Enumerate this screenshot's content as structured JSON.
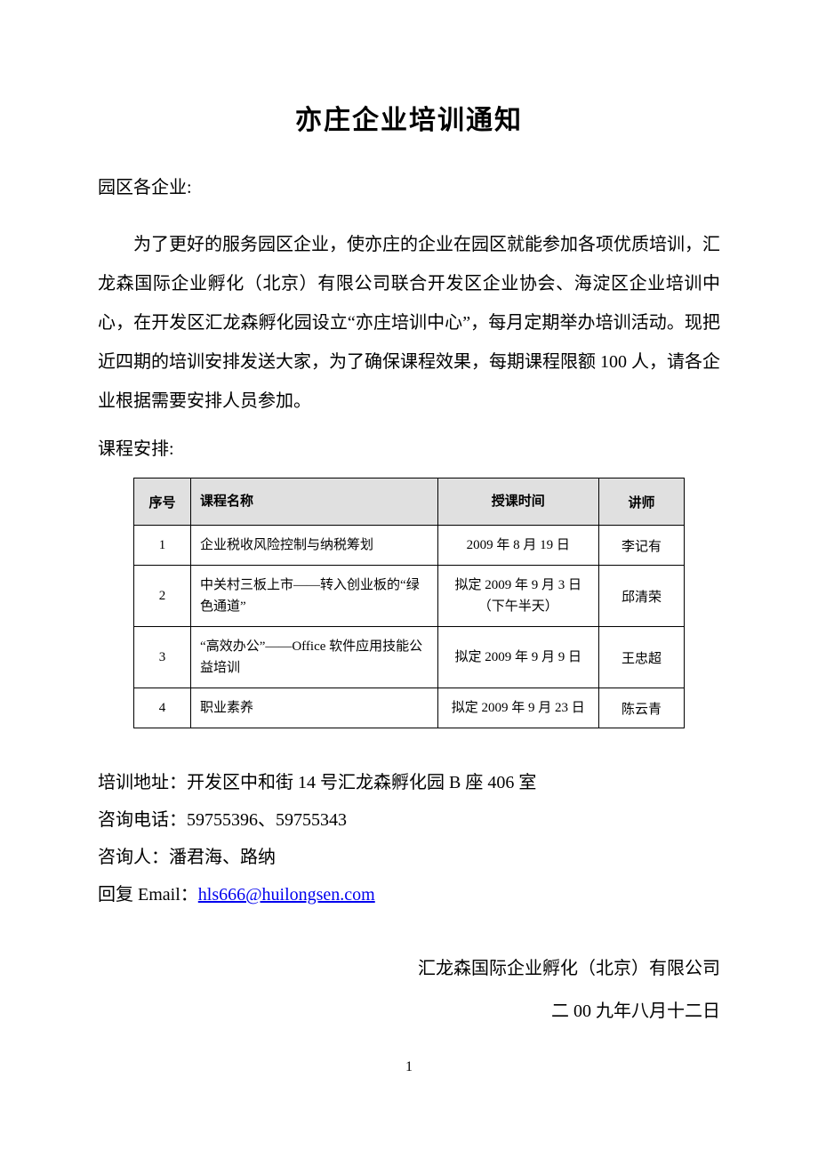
{
  "title": "亦庄企业培训通知",
  "salutation": "园区各企业:",
  "body": "为了更好的服务园区企业，使亦庄的企业在园区就能参加各项优质培训，汇龙森国际企业孵化（北京）有限公司联合开发区企业协会、海淀区企业培训中心，在开发区汇龙森孵化园设立“亦庄培训中心”，每月定期举办培训活动。现把近四期的培训安排发送大家，为了确保课程效果，每期课程限额 100 人，请各企业根据需要安排人员参加。",
  "schedule_label": "课程安排:",
  "table": {
    "headers": {
      "idx": "序号",
      "name": "课程名称",
      "time": "授课时间",
      "teacher": "讲师"
    },
    "rows": [
      {
        "idx": "1",
        "name": "企业税收风险控制与纳税筹划",
        "time": "2009 年 8 月 19 日",
        "teacher": "李记有"
      },
      {
        "idx": "2",
        "name": "中关村三板上市——转入创业板的“绿色通道”",
        "time": "拟定 2009 年 9 月 3 日（下午半天）",
        "teacher": "邱清荣"
      },
      {
        "idx": "3",
        "name": "“高效办公”——Office 软件应用技能公益培训",
        "time": "拟定 2009 年 9 月 9 日",
        "teacher": "王忠超"
      },
      {
        "idx": "4",
        "name": "职业素养",
        "time": "拟定 2009 年 9 月 23 日",
        "teacher": "陈云青"
      }
    ]
  },
  "info": {
    "address_label": "培训地址：",
    "address_value": "开发区中和街 14 号汇龙森孵化园 B 座 406 室",
    "phone_label": "咨询电话：",
    "phone_value": "59755396、59755343",
    "contact_label": "咨询人：",
    "contact_value": "潘君海、路纳",
    "email_label": "回复 Email：",
    "email_value": "hls666@huilongsen.com"
  },
  "signature": {
    "company": "汇龙森国际企业孵化（北京）有限公司",
    "date": "二 00 九年八月十二日"
  },
  "page_number": "1"
}
